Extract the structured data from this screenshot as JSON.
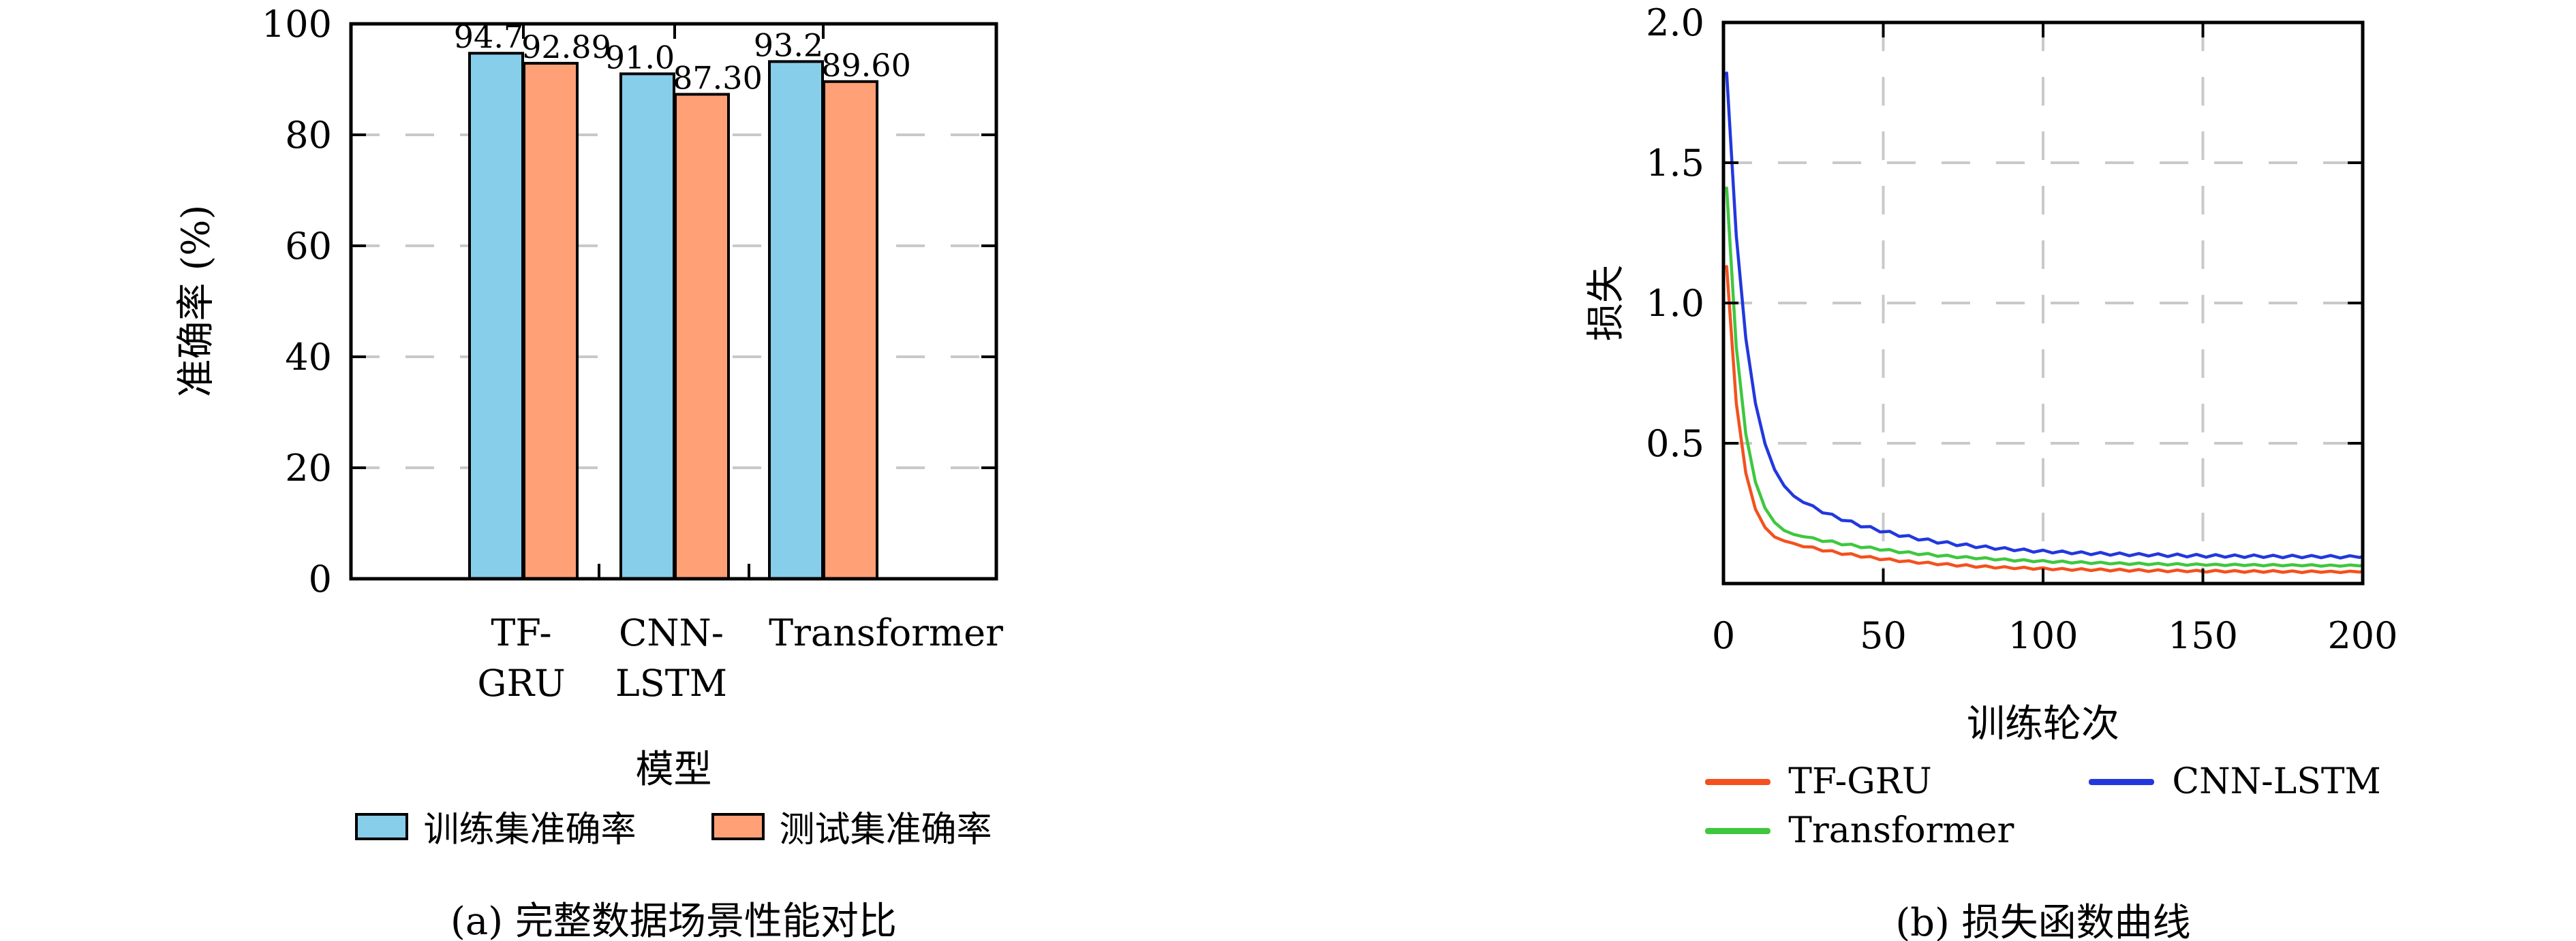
{
  "page": {
    "background": "#ffffff",
    "frame_color": "#000000",
    "grid_color": "#c9c9c9"
  },
  "chart_data": [
    {
      "type": "bar",
      "title": "(a) 完整数据场景性能对比",
      "xlabel": "模型",
      "ylabel": "准确率 (%)",
      "categories": [
        "TF-GRU",
        "CNN-LSTM",
        "Transformer"
      ],
      "category_lines": [
        [
          "TF-",
          "GRU"
        ],
        [
          "CNN-",
          "LSTM"
        ],
        [
          "Transformer"
        ]
      ],
      "series": [
        {
          "name": "训练集准确率",
          "color": "#87CEEB",
          "values": [
            94.7,
            91.0,
            93.2
          ],
          "labels": [
            "94.7",
            "91.0",
            "93.2"
          ]
        },
        {
          "name": "测试集准确率",
          "color": "#FFA077",
          "values": [
            92.89,
            87.3,
            89.6
          ],
          "labels": [
            "92.89",
            "87.30",
            "89.60"
          ]
        }
      ],
      "ylim": [
        0,
        100
      ],
      "yticks": [
        0,
        20,
        40,
        60,
        80,
        100
      ],
      "ytick_labels": [
        "0",
        "20",
        "40",
        "60",
        "80",
        "100"
      ],
      "grid": "dashed-horizontal",
      "legend_position": "below"
    },
    {
      "type": "line",
      "title": "(b) 损失函数曲线",
      "xlabel": "训练轮次",
      "ylabel": "损失",
      "xlim": [
        0,
        200
      ],
      "ylim": [
        0,
        2.0
      ],
      "xticks": [
        0,
        50,
        100,
        150,
        200
      ],
      "xtick_labels": [
        "0",
        "50",
        "100",
        "150",
        "200"
      ],
      "yticks": [
        0.5,
        1.0,
        1.5,
        2.0
      ],
      "ytick_labels": [
        "0.5",
        "1.0",
        "1.5",
        "2.0"
      ],
      "grid": "dashed-both",
      "legend_position": "below",
      "x": [
        1,
        4,
        7,
        10,
        13,
        16,
        19,
        22,
        25,
        28,
        31,
        34,
        37,
        40,
        43,
        46,
        49,
        52,
        55,
        58,
        61,
        64,
        67,
        70,
        73,
        76,
        79,
        82,
        85,
        88,
        91,
        94,
        97,
        100,
        103,
        106,
        109,
        112,
        115,
        118,
        121,
        124,
        127,
        130,
        133,
        136,
        139,
        142,
        145,
        148,
        151,
        154,
        157,
        160,
        163,
        166,
        169,
        172,
        175,
        178,
        181,
        184,
        187,
        190,
        193,
        196,
        199,
        200
      ],
      "series": [
        {
          "name": "TF-GRU",
          "color": "#F4511E",
          "values": [
            1.13,
            0.643,
            0.394,
            0.265,
            0.2,
            0.166,
            0.152,
            0.143,
            0.131,
            0.13,
            0.116,
            0.117,
            0.104,
            0.106,
            0.094,
            0.096,
            0.085,
            0.088,
            0.078,
            0.081,
            0.072,
            0.076,
            0.067,
            0.071,
            0.062,
            0.067,
            0.058,
            0.063,
            0.055,
            0.06,
            0.053,
            0.058,
            0.051,
            0.056,
            0.049,
            0.054,
            0.047,
            0.053,
            0.046,
            0.052,
            0.045,
            0.051,
            0.044,
            0.05,
            0.043,
            0.049,
            0.042,
            0.048,
            0.042,
            0.047,
            0.041,
            0.047,
            0.041,
            0.046,
            0.04,
            0.046,
            0.04,
            0.046,
            0.04,
            0.045,
            0.039,
            0.045,
            0.04,
            0.044,
            0.039,
            0.044,
            0.041,
            0.043
          ]
        },
        {
          "name": "CNN-LSTM",
          "color": "#2238DD",
          "values": [
            1.82,
            1.24,
            0.874,
            0.643,
            0.498,
            0.406,
            0.348,
            0.312,
            0.289,
            0.277,
            0.252,
            0.247,
            0.225,
            0.223,
            0.202,
            0.203,
            0.184,
            0.186,
            0.168,
            0.171,
            0.155,
            0.159,
            0.144,
            0.149,
            0.135,
            0.141,
            0.128,
            0.134,
            0.122,
            0.128,
            0.117,
            0.123,
            0.112,
            0.119,
            0.109,
            0.116,
            0.106,
            0.113,
            0.103,
            0.111,
            0.101,
            0.109,
            0.099,
            0.107,
            0.098,
            0.106,
            0.096,
            0.105,
            0.095,
            0.104,
            0.094,
            0.103,
            0.094,
            0.102,
            0.093,
            0.102,
            0.093,
            0.101,
            0.092,
            0.101,
            0.092,
            0.1,
            0.092,
            0.1,
            0.091,
            0.099,
            0.093,
            0.096
          ]
        },
        {
          "name": "Transformer",
          "color": "#3FC73F",
          "values": [
            1.41,
            0.844,
            0.533,
            0.362,
            0.269,
            0.218,
            0.189,
            0.175,
            0.167,
            0.163,
            0.15,
            0.152,
            0.138,
            0.14,
            0.128,
            0.13,
            0.119,
            0.121,
            0.11,
            0.113,
            0.103,
            0.107,
            0.097,
            0.101,
            0.092,
            0.096,
            0.088,
            0.092,
            0.084,
            0.088,
            0.08,
            0.085,
            0.078,
            0.082,
            0.075,
            0.08,
            0.073,
            0.078,
            0.071,
            0.076,
            0.07,
            0.074,
            0.068,
            0.073,
            0.067,
            0.072,
            0.066,
            0.071,
            0.065,
            0.07,
            0.065,
            0.069,
            0.064,
            0.069,
            0.064,
            0.068,
            0.063,
            0.068,
            0.063,
            0.067,
            0.063,
            0.067,
            0.062,
            0.066,
            0.062,
            0.066,
            0.063,
            0.065
          ]
        }
      ]
    }
  ]
}
